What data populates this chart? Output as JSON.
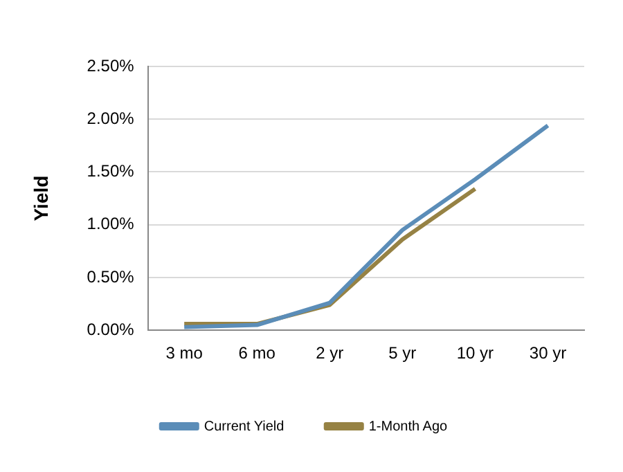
{
  "chart_data": {
    "type": "line",
    "ylabel": "Yield",
    "categories": [
      "3 mo",
      "6 mo",
      "2 yr",
      "5 yr",
      "10 yr",
      "30 yr"
    ],
    "series": [
      {
        "name": "Current Yield",
        "color": "#5b8db8",
        "values": [
          0.03,
          0.05,
          0.26,
          0.95,
          1.43,
          1.94
        ]
      },
      {
        "name": "1-Month Ago",
        "color": "#968244",
        "values": [
          0.06,
          0.06,
          0.24,
          0.86,
          1.34,
          null
        ]
      }
    ],
    "ylim": [
      0,
      2.5
    ],
    "yticks": [
      {
        "value": 0,
        "label": "0.00%"
      },
      {
        "value": 0.5,
        "label": "0.50%"
      },
      {
        "value": 1,
        "label": "1.00%"
      },
      {
        "value": 1.5,
        "label": "1.50%"
      },
      {
        "value": 2,
        "label": "2.00%"
      },
      {
        "value": 2.5,
        "label": "2.50%"
      }
    ],
    "grid": "y",
    "legend": "bottom",
    "marker": "none",
    "line_style": "solid"
  }
}
